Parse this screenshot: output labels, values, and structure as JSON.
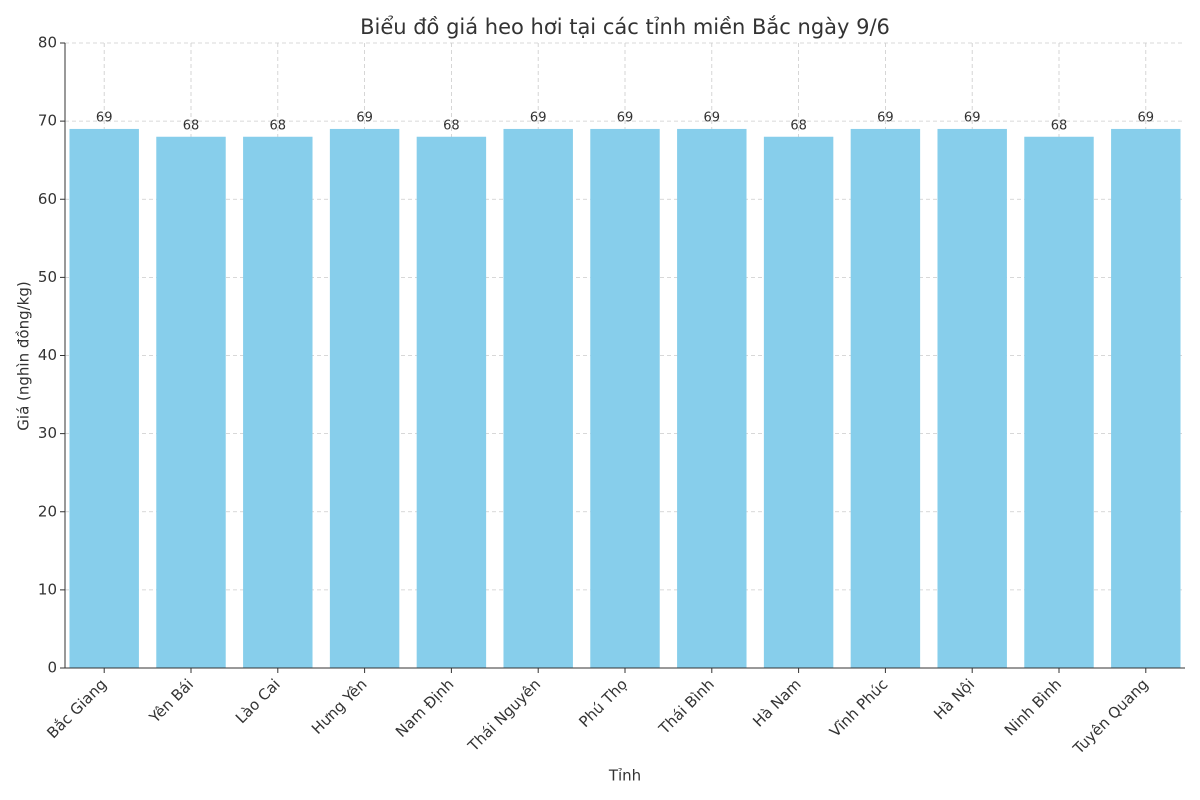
{
  "chart_data": {
    "type": "bar",
    "title": "Biểu đồ giá heo hơi tại các tỉnh miền Bắc ngày 9/6",
    "x_label": "Tỉnh",
    "y_label": "Giá (nghìn đồng/kg)",
    "categories": [
      "Bắc Giang",
      "Yên Bái",
      "Lào Cai",
      "Hưng Yên",
      "Nam Định",
      "Thái Nguyên",
      "Phú Thọ",
      "Thái Bình",
      "Hà Nam",
      "Vĩnh Phúc",
      "Hà Nội",
      "Ninh Bình",
      "Tuyên Quang"
    ],
    "values": [
      69,
      68,
      68,
      69,
      68,
      69,
      69,
      69,
      68,
      69,
      69,
      68,
      69
    ],
    "color": "#87ceeb",
    "ylim": [
      0,
      80
    ],
    "yticks": [
      0,
      10,
      20,
      30,
      40,
      50,
      60,
      70,
      80
    ],
    "grid": true
  }
}
